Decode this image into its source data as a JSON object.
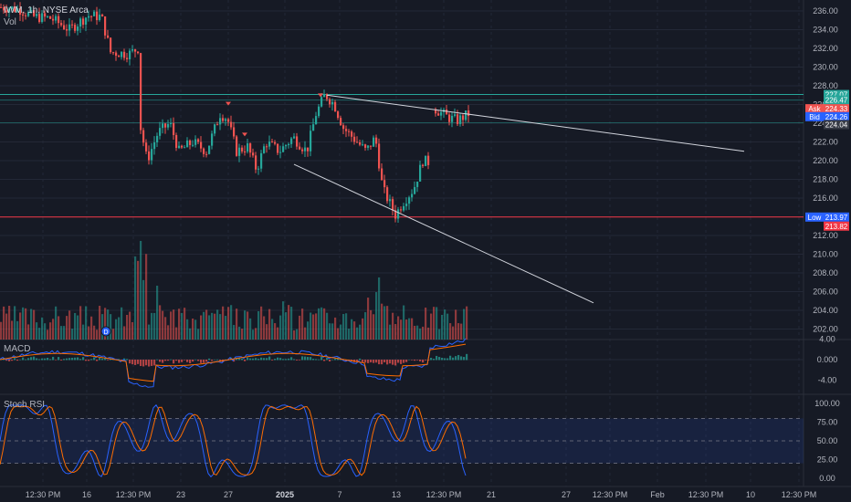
{
  "header": {
    "symbol_line": "IWM, 1h, NYSE Arca",
    "volume_label": "Vol"
  },
  "indicators": {
    "macd_label": "MACD",
    "stoch_label": "Stoch RSI"
  },
  "colors": {
    "background": "#161a25",
    "up": "#26a69a",
    "down": "#ef5350",
    "grid": "#232836",
    "macd_line": "#2962ff",
    "signal_line": "#ff6d00",
    "resistance_line": "#26a69a",
    "support_line": "#f23645",
    "trendline": "#d1d4dc"
  },
  "price_axis": {
    "ticks": [
      "236.00",
      "234.00",
      "232.00",
      "230.00",
      "228.00",
      "226.00",
      "224.00",
      "222.00",
      "220.00",
      "218.00",
      "216.00",
      "214.00",
      "212.00",
      "210.00",
      "208.00",
      "206.00",
      "204.00",
      "202.00"
    ],
    "tick_values": [
      236,
      234,
      232,
      230,
      228,
      226,
      224,
      222,
      220,
      218,
      216,
      214,
      212,
      210,
      208,
      206,
      204,
      202
    ]
  },
  "price_badges": [
    {
      "label": "",
      "value": "227.07",
      "price": 227.07,
      "color": "#26a69a"
    },
    {
      "label": "",
      "value": "226.47",
      "price": 226.47,
      "color": "#26a69a"
    },
    {
      "label": "Ask",
      "value": "224.33",
      "price": 225.55,
      "color": "#ef5350"
    },
    {
      "label": "Bid",
      "value": "224.26",
      "price": 224.7,
      "color": "#2962ff"
    },
    {
      "label": "",
      "value": "224.04",
      "price": 223.85,
      "color": "#363a45"
    },
    {
      "label": "Low",
      "value": "213.97",
      "price": 213.97,
      "color": "#2962ff"
    },
    {
      "label": "",
      "value": "213.82",
      "price": 213.0,
      "color": "#f23645"
    }
  ],
  "macd_axis": {
    "ticks": [
      "4.00",
      "0.000",
      "-4.00"
    ],
    "tick_values": [
      4,
      0,
      -4
    ]
  },
  "stoch_axis": {
    "ticks": [
      "100.00",
      "75.00",
      "50.00",
      "25.00",
      "0.00"
    ],
    "tick_values": [
      100,
      75,
      50,
      25,
      0
    ]
  },
  "time_axis": {
    "labels": [
      "12:30 PM",
      "16",
      "12:30 PM",
      "23",
      "27",
      "2025",
      "7",
      "13",
      "12:30 PM",
      "21",
      "27",
      "12:30 PM",
      "Feb",
      "12:30 PM",
      "10",
      "12:30 PM"
    ],
    "bold_index": 5
  },
  "levels": {
    "resistance": 227.07,
    "support": 213.97,
    "price_line": 224.04
  },
  "volume_marker": "D"
}
